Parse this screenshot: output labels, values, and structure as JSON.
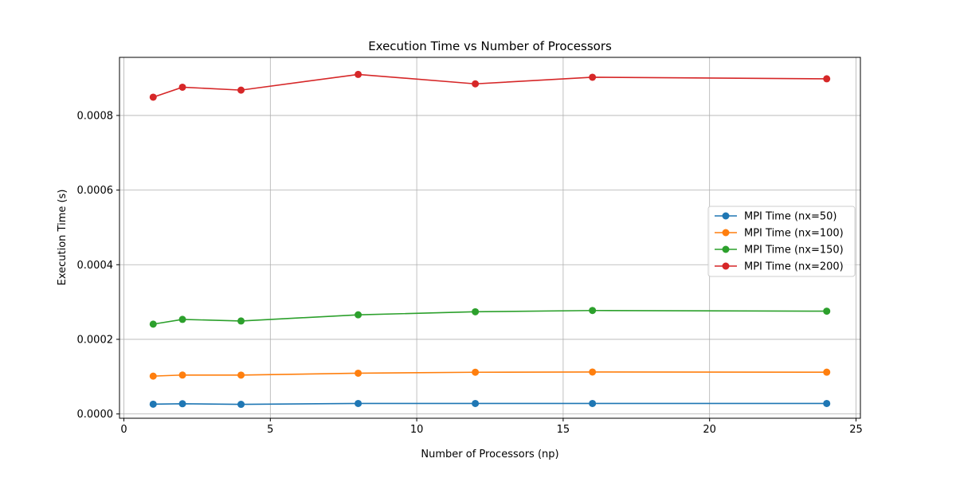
{
  "chart_data": {
    "type": "line",
    "title": "Execution Time vs Number of Processors",
    "xlabel": "Number of Processors (np)",
    "ylabel": "Execution Time (s)",
    "xlim": [
      -0.15,
      25.15
    ],
    "ylim": [
      -1.15e-05,
      0.0009557
    ],
    "xticks": [
      0,
      5,
      10,
      15,
      20,
      25
    ],
    "xtick_labels": [
      "0",
      "5",
      "10",
      "15",
      "20",
      "25"
    ],
    "yticks": [
      0,
      0.0002,
      0.0004,
      0.0006,
      0.0008
    ],
    "ytick_labels": [
      "0.0000",
      "0.0002",
      "0.0004",
      "0.0006",
      "0.0008"
    ],
    "grid": true,
    "legend_position": "center-right",
    "x": [
      1,
      2,
      4,
      8,
      12,
      16,
      24
    ],
    "series": [
      {
        "name": "MPI Time (nx=50)",
        "color": "#1f77b4",
        "marker": "circle",
        "values": [
          2.62e-05,
          2.74e-05,
          2.58e-05,
          2.81e-05,
          2.81e-05,
          2.81e-05,
          2.81e-05
        ]
      },
      {
        "name": "MPI Time (nx=100)",
        "color": "#ff7f0e",
        "marker": "circle",
        "values": [
          0.0001014,
          0.0001043,
          0.0001041,
          0.0001092,
          0.0001118,
          0.0001124,
          0.000112
        ]
      },
      {
        "name": "MPI Time (nx=150)",
        "color": "#2ca02c",
        "marker": "circle",
        "values": [
          0.0002407,
          0.0002534,
          0.0002492,
          0.0002657,
          0.0002739,
          0.0002773,
          0.0002755
        ]
      },
      {
        "name": "MPI Time (nx=200)",
        "color": "#d62728",
        "marker": "circle",
        "values": [
          0.000849,
          0.0008757,
          0.0008679,
          0.00091,
          0.0008847,
          0.0009024,
          0.0008982
        ]
      }
    ]
  }
}
